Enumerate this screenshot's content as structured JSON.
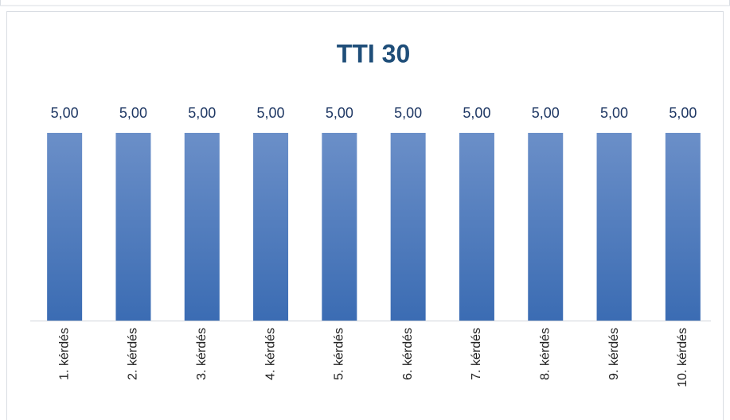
{
  "chart_data": {
    "type": "bar",
    "title": "TTI 30",
    "categories": [
      "1. kérdés",
      "2. kérdés",
      "3. kérdés",
      "4. kérdés",
      "5. kérdés",
      "6. kérdés",
      "7. kérdés",
      "8. kérdés",
      "9. kérdés",
      "10. kérdés"
    ],
    "values": [
      5,
      5,
      5,
      5,
      5,
      5,
      5,
      5,
      5,
      5
    ],
    "value_labels": [
      "5,00",
      "5,00",
      "5,00",
      "5,00",
      "5,00",
      "5,00",
      "5,00",
      "5,00",
      "5,00",
      "5,00"
    ],
    "color": "#4a78bd",
    "ylim": [
      0,
      5
    ]
  }
}
